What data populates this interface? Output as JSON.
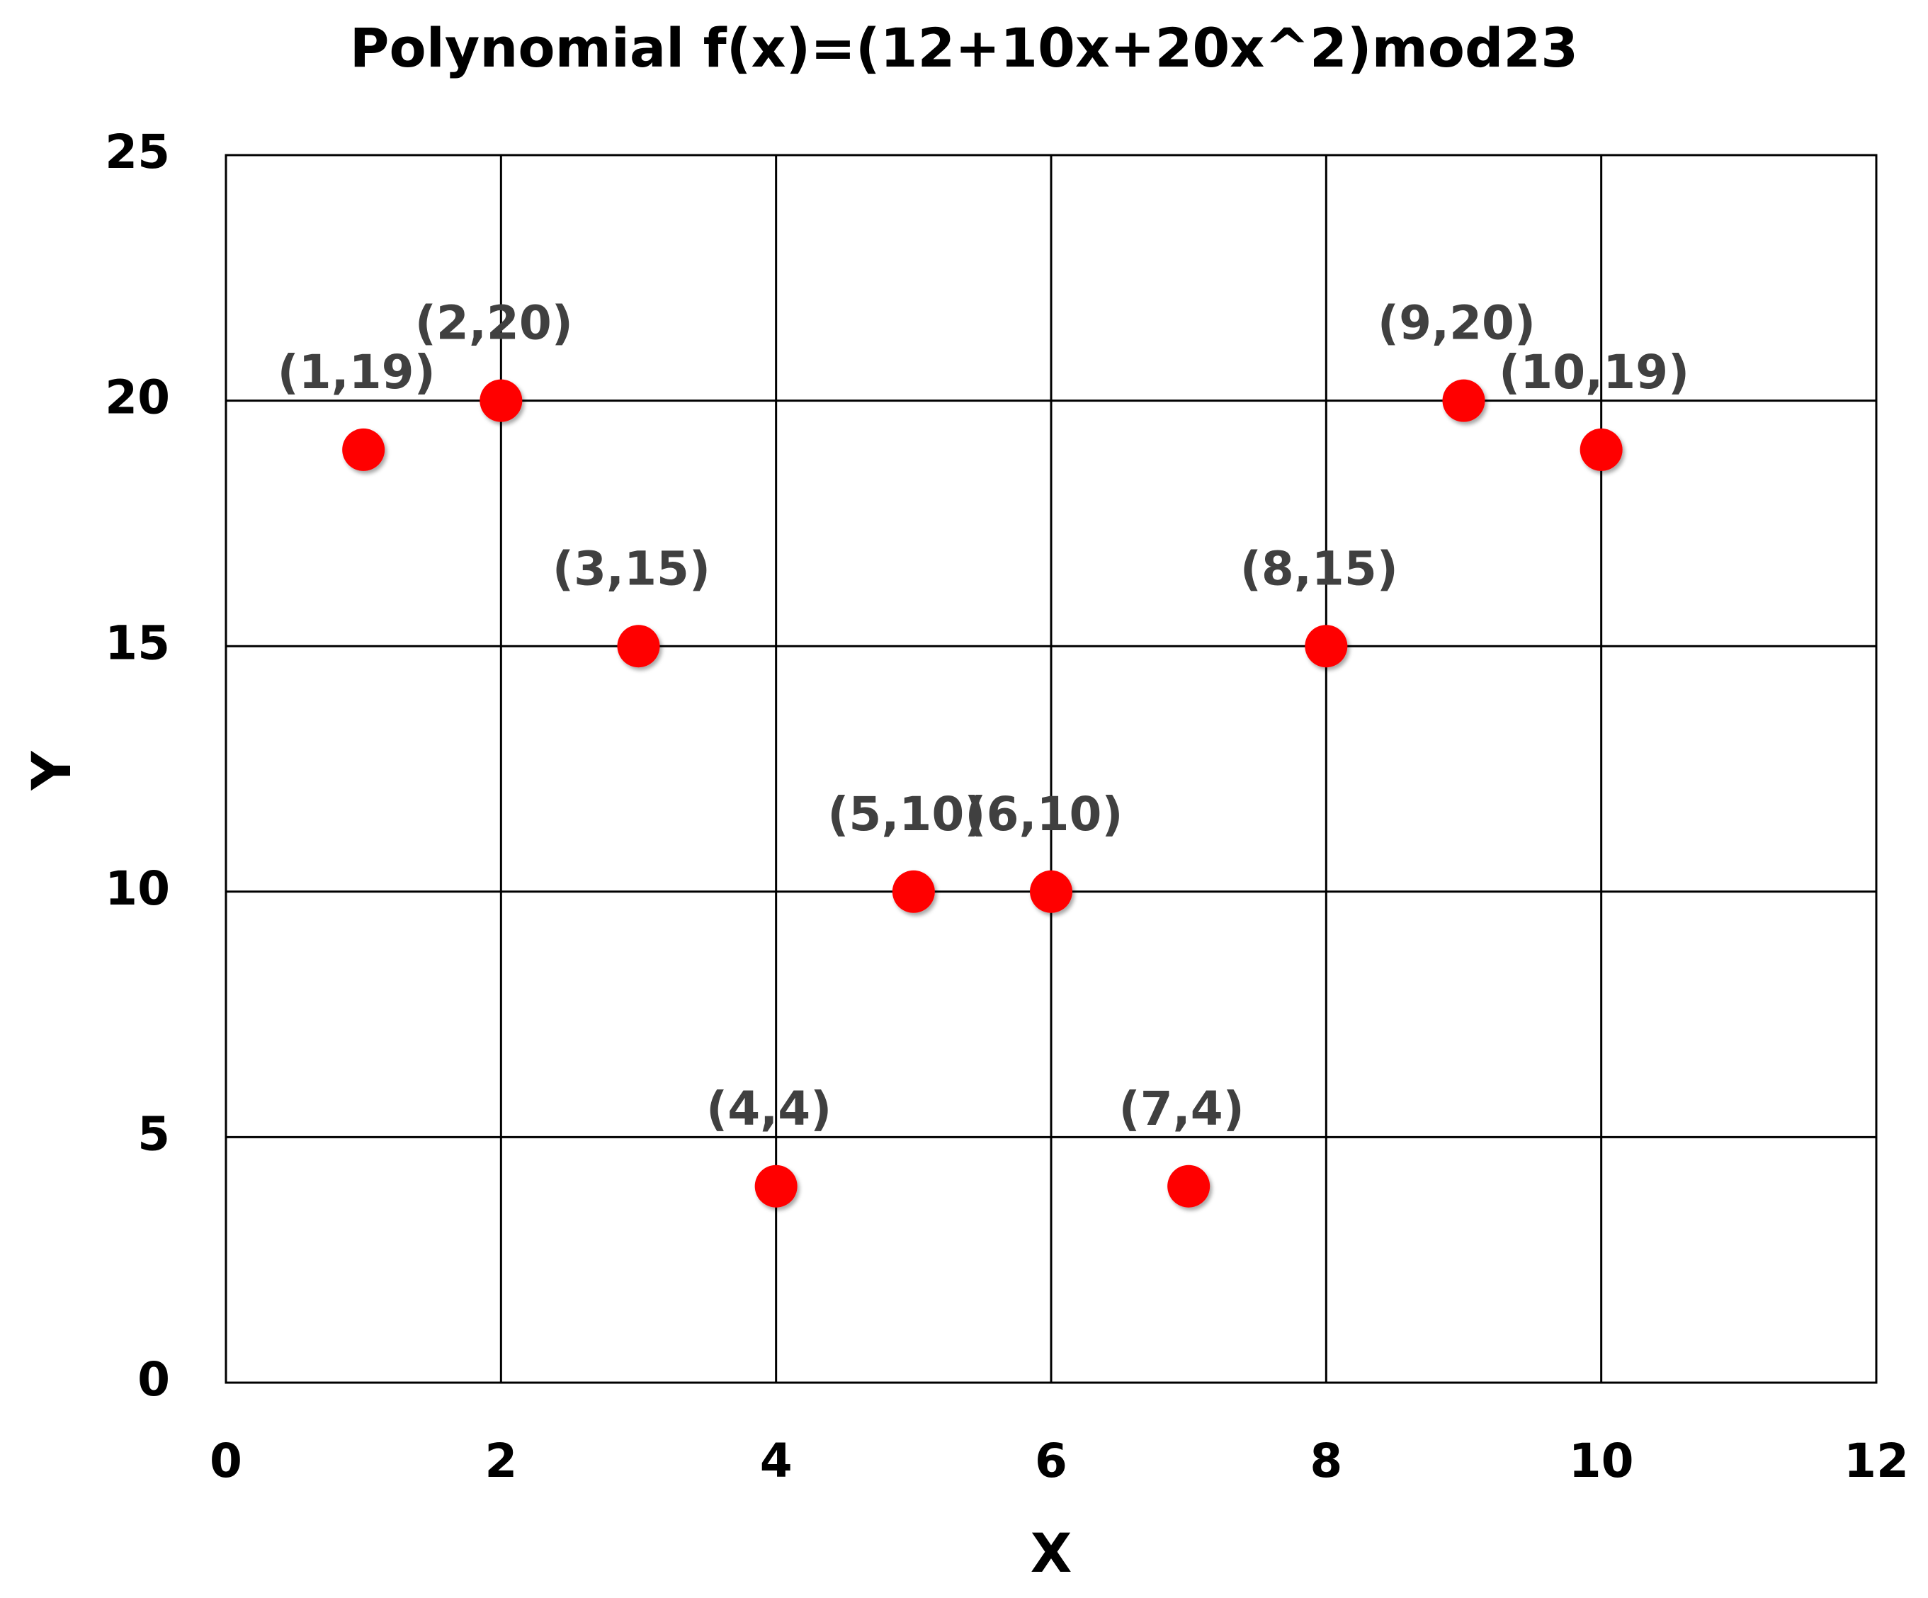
{
  "chart_data": {
    "type": "scatter",
    "title": "Polynomial f(x)=(12+10x+20x^2)mod23",
    "x_label": "X",
    "y_label": "Y",
    "x": [
      1,
      2,
      3,
      4,
      5,
      6,
      7,
      8,
      9,
      10
    ],
    "series": [
      {
        "color": "#ff0000",
        "values": [
          19,
          20,
          15,
          4,
          10,
          10,
          4,
          15,
          20,
          19
        ],
        "value_labels": [
          "(1,19)",
          "(2,20)",
          "(3,15)",
          "(4,4)",
          "(5,10)",
          "(6,10)",
          "(7,4)",
          "(8,15)",
          "(9,20)",
          "(10,19)"
        ]
      }
    ],
    "xlim": [
      0,
      12
    ],
    "ylim": [
      0,
      25
    ],
    "xticks": [
      0,
      2,
      4,
      6,
      8,
      10,
      12
    ],
    "yticks": [
      0,
      5,
      10,
      15,
      20,
      25
    ],
    "grid": true
  }
}
